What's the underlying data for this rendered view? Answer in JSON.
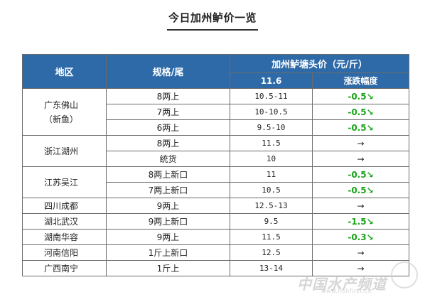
{
  "title": "今日加州鲈价一览",
  "headers": {
    "region": "地区",
    "spec": "规格/尾",
    "price_group": "加州鲈塘头价（元/斤）",
    "date": "11.6",
    "change": "涨跌幅度"
  },
  "regions": [
    {
      "name": "广东佛山（新鱼）",
      "rows": [
        {
          "spec": "8两上",
          "price": "10.5-11",
          "change": "-0.5↘"
        },
        {
          "spec": "7两上",
          "price": "10-10.5",
          "change": "-0.5↘"
        },
        {
          "spec": "6两上",
          "price": "9.5-10",
          "change": "-0.5↘"
        }
      ]
    },
    {
      "name": "浙江湖州",
      "rows": [
        {
          "spec": "8两上",
          "price": "11.5",
          "change": "→"
        },
        {
          "spec": "统货",
          "price": "10",
          "change": "→"
        }
      ]
    },
    {
      "name": "江苏吴江",
      "rows": [
        {
          "spec": "8两上新口",
          "price": "11",
          "change": "-0.5↘"
        },
        {
          "spec": "7两上新口",
          "price": "10.5",
          "change": "-0.5↘"
        }
      ]
    },
    {
      "name": "四川成都",
      "rows": [
        {
          "spec": "9两上",
          "price": "12.5-13",
          "change": "→"
        }
      ]
    },
    {
      "name": "湖北武汉",
      "rows": [
        {
          "spec": "9两上新口",
          "price": "9.5",
          "change": "-1.5↘"
        }
      ]
    },
    {
      "name": "湖南华容",
      "rows": [
        {
          "spec": "9两上",
          "price": "11.5",
          "change": "-0.3↘"
        }
      ]
    },
    {
      "name": "河南信阳",
      "rows": [
        {
          "spec": "1斤上新口",
          "price": "12.5",
          "change": "→"
        }
      ]
    },
    {
      "name": "广西南宁",
      "rows": [
        {
          "spec": "1斤上",
          "price": "13-14",
          "change": "→"
        }
      ]
    }
  ],
  "watermark": "中国水产频道",
  "watermark_url": "www.fishfirst.cn",
  "colors": {
    "header_bg": "#2e6aa8",
    "down": "#19a319",
    "border": "#6b6b6b"
  }
}
